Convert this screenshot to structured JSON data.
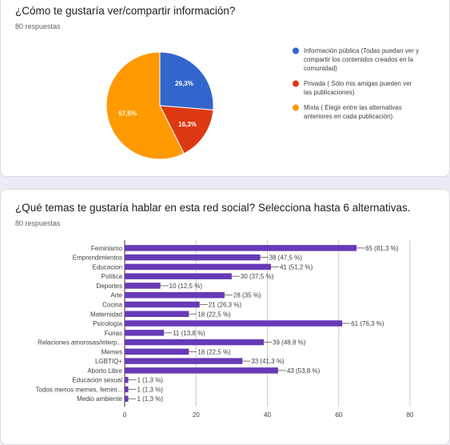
{
  "q1": {
    "title": "¿Cómo te gustaría ver/compartir información?",
    "responses": "80 respuestas"
  },
  "q2": {
    "title": "¿Qué temas te gustaría hablar en esta red social? Selecciona hasta 6 alternativas.",
    "responses": "80 respuestas"
  },
  "chart_data": [
    {
      "type": "pie",
      "title": "",
      "slices": [
        {
          "label": "Información pública (Todas puedan ver y compartir los contenidos creados en la comunidad)",
          "value": 26.3,
          "display": "26,3%",
          "color": "#3366cc"
        },
        {
          "label": "Privada ( Sólo mis amigas pueden ver las publicaciones)",
          "value": 16.3,
          "display": "16,3%",
          "color": "#dc3912"
        },
        {
          "label": "Mixta ( Elegir entre las alternativas anteriores en cada publicación)",
          "value": 57.5,
          "display": "57,5%",
          "color": "#ff9900"
        }
      ],
      "legend_lines": [
        [
          "Información pública (Todas puedan ver y",
          "compartir los contenidos creados en la",
          "comunidad)"
        ],
        [
          "Privada ( Sólo mis amigas pueden ver",
          "las publicaciones)"
        ],
        [
          "Mixta ( Elegir entre las alternativas",
          "anteriores en cada publicación)"
        ]
      ],
      "legend_position": "right"
    },
    {
      "type": "bar",
      "orientation": "horizontal",
      "title": "",
      "bar_color": "#673ab7",
      "categories": [
        "Feminismo",
        "Emprendimientos",
        "Educacion",
        "Política",
        "Deportes",
        "Arte",
        "Cocina",
        "Maternidad",
        "Psicología",
        "Funas",
        "Relaciones amorosas/interp...",
        "Memes",
        "LGBTIQ+",
        "Aborto Libre",
        "Educacion sexual",
        "Todos menos memes, femini...",
        "Medio ambiente"
      ],
      "values": [
        65,
        38,
        41,
        30,
        10,
        28,
        21,
        18,
        61,
        11,
        39,
        18,
        33,
        43,
        1,
        1,
        1
      ],
      "value_labels": [
        "65 (81,3 %)",
        "38 (47,5 %)",
        "41 (51,2 %)",
        "30 (37,5 %)",
        "10 (12,5 %)",
        "28 (35 %)",
        "21 (26,3 %)",
        "18 (22,5 %)",
        "61 (76,3 %)",
        "11 (13,8 %)",
        "39 (48,8 %)",
        "18 (22,5 %)",
        "33 (41,3 %)",
        "43 (53,8 %)",
        "1 (1,3 %)",
        "1 (1,3 %)",
        "1 (1,3 %)"
      ],
      "x_ticks": [
        "0",
        "20",
        "40",
        "60",
        "80"
      ],
      "xlim": [
        0,
        80
      ],
      "grid": true
    }
  ]
}
